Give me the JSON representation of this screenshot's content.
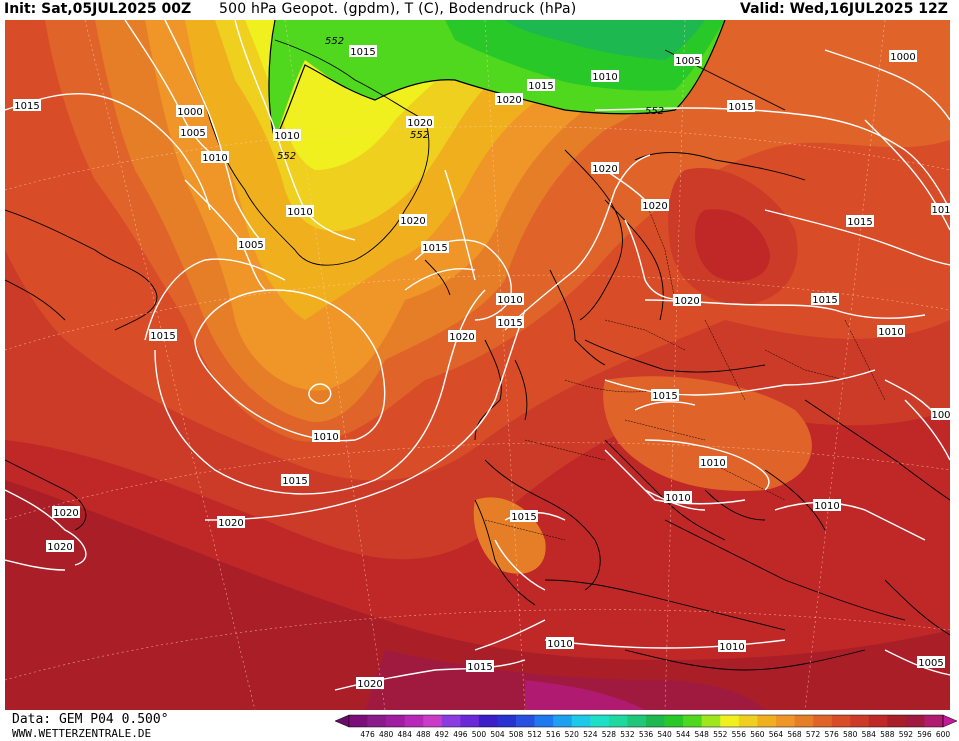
{
  "header": {
    "init": "Init: Sat,05JUL2025 00Z",
    "title": "500 hPa Geopot. (gpdm), T (C), Bodendruck (hPa)",
    "valid": "Valid: Wed,16JUL2025 12Z"
  },
  "footer": {
    "data_source": "Data: GEM P04 0.500°",
    "website": "WWW.WETTERZENTRALE.DE"
  },
  "legend": {
    "values": [
      "476",
      "480",
      "484",
      "488",
      "492",
      "496",
      "500",
      "504",
      "508",
      "512",
      "516",
      "520",
      "524",
      "528",
      "532",
      "536",
      "540",
      "544",
      "548",
      "552",
      "556",
      "560",
      "564",
      "568",
      "572",
      "576",
      "580",
      "584",
      "588",
      "592",
      "596",
      "600"
    ],
    "colors": [
      "#6a0a6a",
      "#7a0f7a",
      "#8a1b8a",
      "#a01ca0",
      "#b828b8",
      "#c83cc8",
      "#8a3ce0",
      "#6a28d8",
      "#3c1ec8",
      "#2832d0",
      "#2850e0",
      "#1e78f0",
      "#1ea0f0",
      "#1ec8e8",
      "#1ee0c8",
      "#1ed8a0",
      "#1ec878",
      "#1eb850",
      "#28c828",
      "#50d81e",
      "#a0e61e",
      "#f0f01e",
      "#f0d01e",
      "#f0b01e",
      "#f09628",
      "#e67e28",
      "#e0642a",
      "#d84c28",
      "#cc3a28",
      "#c02828",
      "#aa1e28",
      "#a01a40",
      "#b01a70",
      "#c01a9a"
    ]
  },
  "isobar_labels": [
    {
      "id": "l1",
      "text": "1015"
    },
    {
      "id": "l2",
      "text": "1000"
    },
    {
      "id": "l3",
      "text": "1005"
    },
    {
      "id": "l4",
      "text": "1010"
    },
    {
      "id": "l5",
      "text": "1010"
    },
    {
      "id": "l6",
      "text": "1005"
    },
    {
      "id": "l7",
      "text": "1015"
    },
    {
      "id": "l8",
      "text": "1010"
    },
    {
      "id": "l9",
      "text": "1020"
    },
    {
      "id": "l10",
      "text": "1015"
    },
    {
      "id": "l11",
      "text": "1020"
    },
    {
      "id": "l12",
      "text": "1015"
    },
    {
      "id": "l13",
      "text": "1020"
    },
    {
      "id": "l14",
      "text": "1010"
    },
    {
      "id": "l15",
      "text": "1005"
    },
    {
      "id": "l16",
      "text": "1000"
    },
    {
      "id": "l17",
      "text": "1015"
    },
    {
      "id": "l18",
      "text": "1020"
    },
    {
      "id": "l19",
      "text": "1020"
    },
    {
      "id": "l20",
      "text": "1015"
    },
    {
      "id": "l21",
      "text": "1010"
    },
    {
      "id": "l22",
      "text": "1015"
    },
    {
      "id": "l23",
      "text": "1020"
    },
    {
      "id": "l24",
      "text": "1010"
    },
    {
      "id": "l25",
      "text": "1015"
    },
    {
      "id": "l26",
      "text": "1020"
    },
    {
      "id": "l27",
      "text": "1020"
    },
    {
      "id": "l28",
      "text": "1020"
    },
    {
      "id": "l29",
      "text": "1020"
    },
    {
      "id": "l30",
      "text": "1015"
    },
    {
      "id": "l31",
      "text": "1015"
    },
    {
      "id": "l32",
      "text": "1020"
    },
    {
      "id": "l33",
      "text": "1015"
    },
    {
      "id": "l34",
      "text": "1010"
    },
    {
      "id": "l35",
      "text": "1010"
    },
    {
      "id": "l36",
      "text": "1010"
    },
    {
      "id": "l37",
      "text": "1015"
    },
    {
      "id": "l38",
      "text": "1010"
    },
    {
      "id": "l39",
      "text": "1010"
    },
    {
      "id": "l40",
      "text": "1015"
    },
    {
      "id": "l41",
      "text": "1010"
    },
    {
      "id": "l42",
      "text": "1005"
    },
    {
      "id": "l43",
      "text": "101"
    },
    {
      "id": "l44",
      "text": "100"
    }
  ],
  "geopotential_labels": [
    {
      "id": "g1",
      "text": "552"
    },
    {
      "id": "g2",
      "text": "552"
    },
    {
      "id": "g3",
      "text": "552"
    },
    {
      "id": "g4",
      "text": "552"
    }
  ]
}
